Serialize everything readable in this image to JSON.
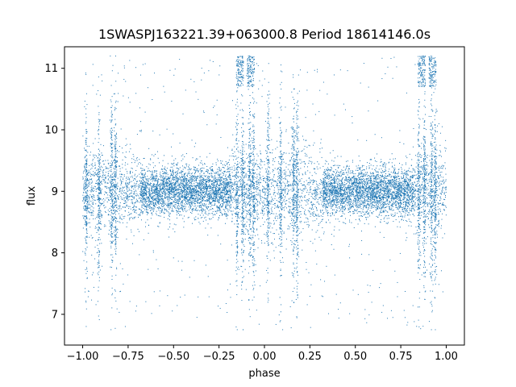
{
  "chart_data": {
    "type": "scatter",
    "title": "1SWASPJ163221.39+063000.8 Period 18614146.0s",
    "xlabel": "phase",
    "ylabel": "flux",
    "xlim": [
      -1.1,
      1.1
    ],
    "ylim": [
      6.5,
      11.35
    ],
    "x_ticks": [
      -1.0,
      -0.75,
      -0.5,
      -0.25,
      0.0,
      0.25,
      0.5,
      0.75,
      1.0
    ],
    "x_tick_labels": [
      "−1.00",
      "−0.75",
      "−0.50",
      "−0.25",
      "0.00",
      "0.25",
      "0.50",
      "0.75",
      "1.00"
    ],
    "y_ticks": [
      7,
      8,
      9,
      10,
      11
    ],
    "y_tick_labels": [
      "7",
      "8",
      "9",
      "10",
      "11"
    ],
    "grid": false,
    "marker_color": "#1f77b4",
    "series": [
      {
        "phase_range": [
          -1.0,
          1.0
        ],
        "baseline_flux": 9.0,
        "typical_spread": [
          8.3,
          9.6
        ],
        "flux_range": [
          6.75,
          11.2
        ],
        "dense_band_phases": [
          [
            -0.68,
            -0.18
          ],
          [
            0.32,
            0.82
          ]
        ],
        "vertical_streak_phases": [
          -0.98,
          -0.91,
          -0.84,
          -0.82,
          -0.15,
          -0.12,
          -0.08,
          -0.06,
          0.02,
          0.09,
          0.16,
          0.18,
          0.85,
          0.88,
          0.92,
          0.94
        ],
        "high_flux_clusters": [
          {
            "phase": -0.135,
            "flux_range": [
              10.7,
              11.2
            ]
          },
          {
            "phase": -0.075,
            "flux_range": [
              10.7,
              11.2
            ]
          },
          {
            "phase": 0.865,
            "flux_range": [
              10.7,
              11.2
            ]
          },
          {
            "phase": 0.925,
            "flux_range": [
              10.7,
              11.2
            ]
          }
        ]
      }
    ]
  }
}
